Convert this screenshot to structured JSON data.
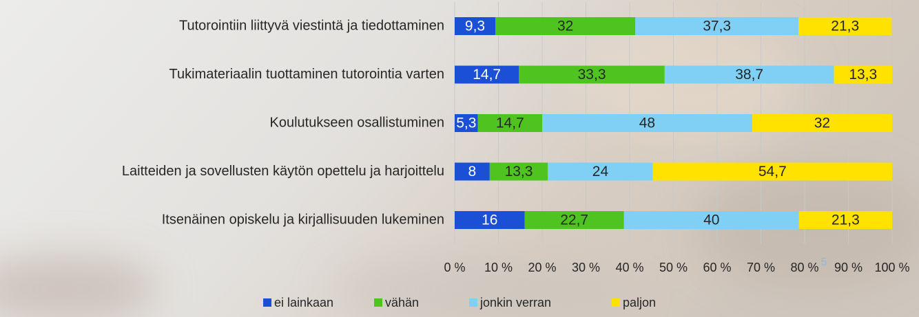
{
  "chart_data": {
    "type": "stacked-bar-horizontal",
    "categories": [
      "Tutorointiin liittyvä viestintä ja tiedottaminen",
      "Tukimateriaalin tuottaminen tutorointia varten",
      "Koulutukseen osallistuminen",
      "Laitteiden ja sovellusten käytön opettelu ja harjoittelu",
      "Itsenäinen opiskelu ja kirjallisuuden lukeminen"
    ],
    "series": [
      {
        "name": "ei lainkaan",
        "color": "#1a4fd6",
        "values": [
          9.3,
          14.7,
          5.3,
          8,
          16
        ],
        "value_labels": [
          "9,3",
          "14,7",
          "5,3",
          "8",
          "16"
        ]
      },
      {
        "name": "vähän",
        "color": "#4fc31f",
        "values": [
          32,
          33.3,
          14.7,
          13.3,
          22.7
        ],
        "value_labels": [
          "32",
          "33,3",
          "14,7",
          "13,3",
          "22,7"
        ]
      },
      {
        "name": "jonkin verran",
        "color": "#80d0f6",
        "values": [
          37.3,
          38.7,
          48,
          24,
          40
        ],
        "value_labels": [
          "37,3",
          "38,7",
          "48",
          "24",
          "40"
        ]
      },
      {
        "name": "paljon",
        "color": "#ffe200",
        "values": [
          21.3,
          13.3,
          32,
          54.7,
          21.3
        ],
        "value_labels": [
          "21,3",
          "13,3",
          "32",
          "54,7",
          "21,3"
        ]
      }
    ],
    "xlim": [
      0,
      100
    ],
    "xticks": [
      {
        "value": 0,
        "label": "0 %"
      },
      {
        "value": 10,
        "label": "10 %"
      },
      {
        "value": 20,
        "label": "20 %"
      },
      {
        "value": 30,
        "label": "30 %"
      },
      {
        "value": 40,
        "label": "40 %"
      },
      {
        "value": 50,
        "label": "50 %"
      },
      {
        "value": 60,
        "label": "60 %"
      },
      {
        "value": 70,
        "label": "70 %"
      },
      {
        "value": 80,
        "label": "80 %"
      },
      {
        "value": 90,
        "label": "90 %"
      },
      {
        "value": 100,
        "label": "100 %"
      }
    ],
    "grid": true,
    "legend": "bottom",
    "page_number": "5"
  }
}
